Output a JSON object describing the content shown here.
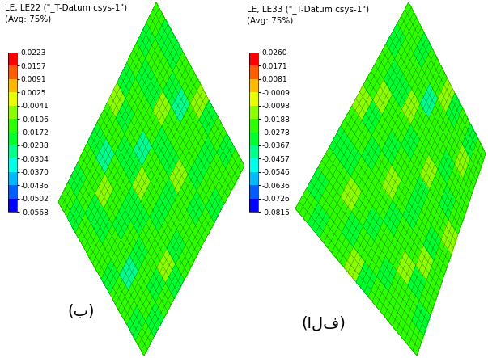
{
  "chart_data": [
    {
      "type": "heatmap",
      "title": "LE, LE22 (\"_T-Datum csys-1\")",
      "subtitle": "(Avg: 75%)",
      "annotation": "(ب)",
      "cells": [
        [
          -0.015,
          -0.019,
          -0.013,
          -0.021,
          -0.016,
          -0.009,
          -0.018,
          -0.014,
          -0.02,
          -0.016
        ],
        [
          -0.02,
          -0.012,
          -0.017,
          -0.025,
          -0.014,
          -0.019,
          -0.011,
          -0.022,
          -0.015,
          -0.018
        ],
        [
          -0.013,
          -0.018,
          -0.008,
          -0.016,
          -0.02,
          -0.013,
          -0.017,
          -0.019,
          -0.012,
          -0.021
        ],
        [
          -0.017,
          -0.022,
          -0.015,
          -0.012,
          -0.018,
          -0.024,
          -0.014,
          -0.01,
          -0.018,
          -0.014
        ],
        [
          -0.011,
          -0.016,
          -0.02,
          -0.018,
          -0.009,
          -0.016,
          -0.021,
          -0.016,
          -0.027,
          -0.017
        ],
        [
          -0.019,
          -0.014,
          -0.012,
          -0.023,
          -0.015,
          -0.013,
          -0.018,
          -0.012,
          -0.016,
          -0.01
        ],
        [
          -0.016,
          -0.026,
          -0.018,
          -0.014,
          -0.019,
          -0.021,
          -0.01,
          -0.017,
          -0.013,
          -0.019
        ],
        [
          -0.012,
          -0.017,
          -0.011,
          -0.016,
          -0.013,
          -0.017,
          -0.015,
          -0.022,
          -0.018,
          -0.015
        ],
        [
          -0.018,
          -0.013,
          -0.019,
          -0.01,
          -0.022,
          -0.014,
          -0.019,
          -0.013,
          -0.011,
          -0.02
        ],
        [
          -0.014,
          -0.02,
          -0.016,
          -0.018,
          -0.016,
          -0.011,
          -0.016,
          -0.018,
          -0.015,
          -0.013
        ]
      ],
      "colorbar_range": [
        -0.0568,
        0.0223
      ],
      "colorbar_ticks": [
        -0.0568,
        -0.0502,
        -0.0436,
        {
          "value": -0.037,
          "label": "-0.0370"
        },
        -0.0304,
        -0.0238,
        -0.0172,
        -0.0106,
        -0.0041,
        0.0025,
        0.0091,
        0.0157,
        0.0223
      ]
    },
    {
      "type": "heatmap",
      "title": "LE, LE33 (\"_T-Datum csys-1\")",
      "subtitle": "(Avg: 75%)",
      "annotation": "(الف)",
      "cells": [
        [
          -0.024,
          -0.029,
          -0.021,
          -0.031,
          -0.025,
          -0.016,
          -0.027,
          -0.023,
          -0.03,
          -0.025
        ],
        [
          -0.03,
          -0.02,
          -0.026,
          -0.035,
          -0.022,
          -0.028,
          -0.018,
          -0.032,
          -0.024,
          -0.027
        ],
        [
          -0.021,
          -0.027,
          -0.013,
          -0.025,
          -0.03,
          -0.021,
          -0.026,
          -0.028,
          -0.019,
          -0.031
        ],
        [
          -0.026,
          -0.032,
          -0.024,
          -0.019,
          -0.027,
          -0.034,
          -0.022,
          -0.016,
          -0.027,
          -0.022
        ],
        [
          -0.018,
          -0.025,
          -0.03,
          -0.027,
          -0.014,
          -0.025,
          -0.031,
          -0.025,
          -0.037,
          -0.026
        ],
        [
          -0.028,
          -0.022,
          -0.019,
          -0.033,
          -0.024,
          -0.02,
          -0.027,
          -0.019,
          -0.025,
          -0.016
        ],
        [
          -0.025,
          -0.036,
          -0.027,
          -0.022,
          -0.028,
          -0.031,
          -0.017,
          -0.026,
          -0.021,
          -0.028
        ],
        [
          -0.019,
          -0.026,
          -0.017,
          -0.025,
          -0.021,
          -0.026,
          -0.024,
          -0.032,
          -0.027,
          -0.023
        ],
        [
          -0.027,
          -0.021,
          -0.028,
          -0.016,
          -0.032,
          -0.022,
          -0.028,
          -0.02,
          -0.018,
          -0.03
        ],
        [
          -0.022,
          -0.03,
          -0.025,
          -0.027,
          -0.025,
          -0.018,
          -0.025,
          -0.027,
          -0.024,
          -0.021
        ]
      ],
      "colorbar_range": [
        -0.0815,
        0.026
      ],
      "colorbar_ticks": [
        -0.0815,
        -0.0726,
        -0.0636,
        -0.0546,
        -0.0457,
        -0.0367,
        -0.0278,
        -0.0188,
        -0.0098,
        -0.0009,
        0.0081,
        0.0171,
        {
          "value": 0.026,
          "label": "0.0260"
        }
      ]
    }
  ]
}
